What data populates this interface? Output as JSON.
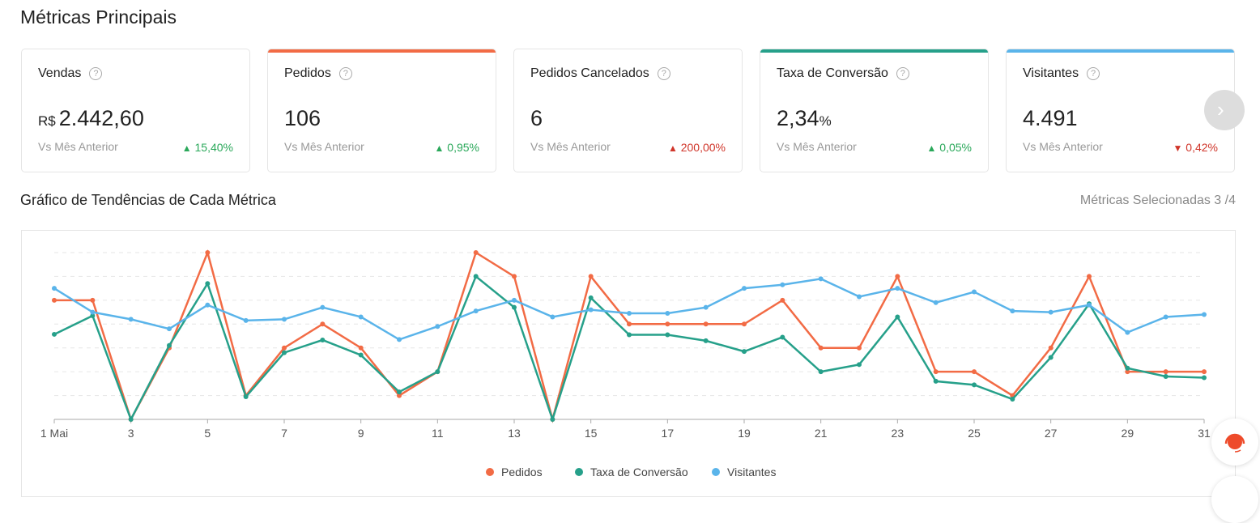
{
  "page_title": "Métricas Principais",
  "cards": [
    {
      "title": "Vendas",
      "prefix": "R$",
      "value": "2.442,60",
      "suffix": "",
      "vs": "Vs Mês Anterior",
      "change": "15,40%",
      "direction": "up",
      "accent": ""
    },
    {
      "title": "Pedidos",
      "prefix": "",
      "value": "106",
      "suffix": "",
      "vs": "Vs Mês Anterior",
      "change": "0,95%",
      "direction": "up",
      "accent": "#f26b45"
    },
    {
      "title": "Pedidos Cancelados",
      "prefix": "",
      "value": "6",
      "suffix": "",
      "vs": "Vs Mês Anterior",
      "change": "200,00%",
      "direction": "up-bad",
      "accent": ""
    },
    {
      "title": "Taxa de Conversão",
      "prefix": "",
      "value": "2,34",
      "suffix": "%",
      "vs": "Vs Mês Anterior",
      "change": "0,05%",
      "direction": "up",
      "accent": "#26a08a"
    },
    {
      "title": "Visitantes",
      "prefix": "",
      "value": "4.491",
      "suffix": "",
      "vs": "Vs Mês Anterior",
      "change": "0,42%",
      "direction": "down",
      "accent": "#5ab4ea"
    }
  ],
  "help_icon": "?",
  "next_icon": "›",
  "trend_title": "Gráfico de Tendências de Cada Métrica",
  "selected_metrics": "Métricas Selecionadas 3 /4",
  "chart_data": {
    "type": "line",
    "x": [
      1,
      2,
      3,
      4,
      5,
      6,
      7,
      8,
      9,
      10,
      11,
      12,
      13,
      14,
      15,
      16,
      17,
      18,
      19,
      20,
      21,
      22,
      23,
      24,
      25,
      26,
      27,
      28,
      29,
      30,
      31
    ],
    "tick_labels": [
      "1 Mai",
      "3",
      "5",
      "7",
      "9",
      "11",
      "13",
      "15",
      "17",
      "19",
      "21",
      "23",
      "25",
      "27",
      "29",
      "31"
    ],
    "ylim": [
      0,
      7
    ],
    "grid": true,
    "legend_position": "bottom",
    "series": [
      {
        "name": "Pedidos",
        "color": "#f26b45",
        "values": [
          5,
          5,
          0,
          3,
          7,
          1,
          3,
          4,
          3,
          1,
          2,
          7,
          6,
          0,
          6,
          4,
          4,
          4,
          4,
          5,
          3,
          3,
          6,
          2,
          2,
          1,
          3,
          6,
          2,
          2,
          2
        ]
      },
      {
        "name": "Taxa de Conversão",
        "color": "#26a08a",
        "values": [
          3.57,
          4.35,
          0,
          3.1,
          5.7,
          0.95,
          2.8,
          3.33,
          2.7,
          1.15,
          2.0,
          6.0,
          4.7,
          0,
          5.1,
          3.55,
          3.55,
          3.3,
          2.85,
          3.45,
          2.0,
          2.3,
          4.3,
          1.6,
          1.45,
          0.85,
          2.6,
          4.85,
          2.15,
          1.8,
          1.75
        ]
      },
      {
        "name": "Visitantes",
        "color": "#5ab4ea",
        "values": [
          5.5,
          4.5,
          4.2,
          3.8,
          4.8,
          4.15,
          4.2,
          4.7,
          4.3,
          3.35,
          3.9,
          4.55,
          5.0,
          4.3,
          4.6,
          4.45,
          4.45,
          4.7,
          5.5,
          5.65,
          5.9,
          5.15,
          5.5,
          4.9,
          5.35,
          4.55,
          4.5,
          4.8,
          3.65,
          4.3,
          4.4
        ]
      }
    ]
  }
}
